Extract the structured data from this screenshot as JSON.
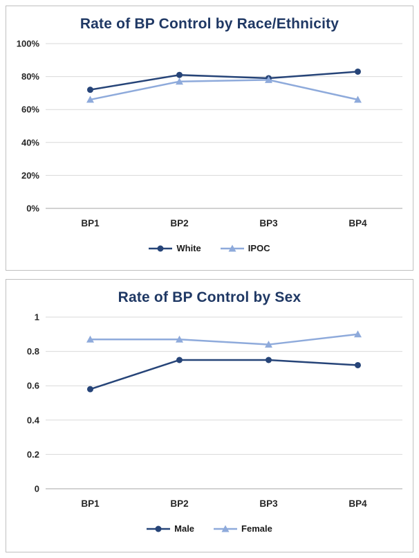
{
  "chart_data": [
    {
      "type": "line",
      "title": "Rate of BP Control by Race/Ethnicity",
      "categories": [
        "BP1",
        "BP2",
        "BP3",
        "BP4"
      ],
      "series": [
        {
          "name": "White",
          "marker": "circle",
          "color": "#264478",
          "values": [
            0.72,
            0.81,
            0.79,
            0.83
          ]
        },
        {
          "name": "IPOC",
          "marker": "triangle",
          "color": "#8EAADB",
          "values": [
            0.66,
            0.77,
            0.78,
            0.66
          ]
        }
      ],
      "ylim": [
        0,
        1
      ],
      "yticks": [
        0,
        0.2,
        0.4,
        0.6,
        0.8,
        1
      ],
      "ytick_format": "percent",
      "grid": true,
      "legend_position": "bottom"
    },
    {
      "type": "line",
      "title": "Rate of BP Control by Sex",
      "categories": [
        "BP1",
        "BP2",
        "BP3",
        "BP4"
      ],
      "series": [
        {
          "name": "Male",
          "marker": "circle",
          "color": "#264478",
          "values": [
            0.58,
            0.75,
            0.75,
            0.72
          ]
        },
        {
          "name": "Female",
          "marker": "triangle",
          "color": "#8EAADB",
          "values": [
            0.87,
            0.87,
            0.84,
            0.9
          ]
        }
      ],
      "ylim": [
        0,
        1
      ],
      "yticks": [
        0,
        0.2,
        0.4,
        0.6,
        0.8,
        1
      ],
      "ytick_format": "number",
      "grid": true,
      "legend_position": "bottom"
    }
  ],
  "colors": {
    "title_text": "#1F3864",
    "gridline": "#D9D9D9",
    "axis_line": "#A6A6A6",
    "tick_text": "#262626",
    "panel_border": "#BFBFBF"
  }
}
